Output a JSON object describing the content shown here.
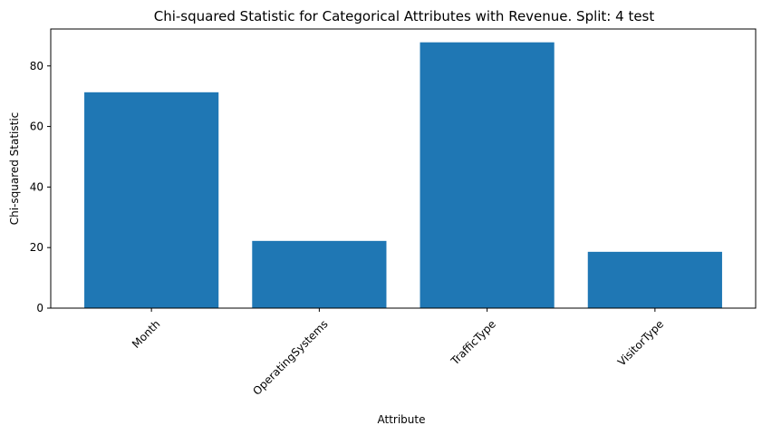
{
  "chart_data": {
    "type": "bar",
    "title": "Chi-squared Statistic for Categorical Attributes with Revenue. Split: 4 test",
    "xlabel": "Attribute",
    "ylabel": "Chi-squared Statistic",
    "categories": [
      "Month",
      "OperatingSystems",
      "TrafficType",
      "VisitorType"
    ],
    "values": [
      71.3,
      22.2,
      87.8,
      18.6
    ],
    "ylim": [
      0,
      92.2
    ],
    "yticks": [
      0,
      20,
      40,
      60,
      80
    ],
    "bar_color": "#1f77b4",
    "grid": false,
    "legend": "none"
  }
}
